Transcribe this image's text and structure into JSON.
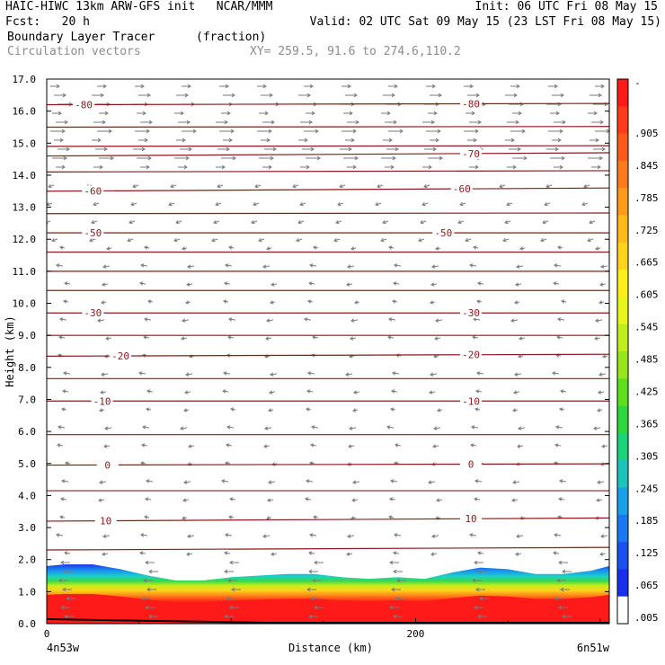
{
  "header": {
    "model": "HAIC-HIWC 13km ARW-GFS init   NCAR/MMM",
    "init": "Init: 06 UTC Fri 08 May 15",
    "fcst": "Fcst:   20 h",
    "valid": "Valid: 02 UTC Sat 09 May 15 (23 LST Fri 08 May 15)",
    "field": "Boundary Layer Tracer",
    "units": "(fraction)",
    "vectors": "Circulation vectors",
    "xy": "XY= 259.5, 91.6 to 274.6,110.2"
  },
  "chart_data": {
    "type": "cross-section",
    "ylabel": "Height (km)",
    "xlabel": "Distance (km)",
    "ylim": [
      0,
      17
    ],
    "xlim": [
      0,
      305
    ],
    "y_ticks": [
      "0.0",
      "1.0",
      "2.0",
      "3.0",
      "4.0",
      "5.0",
      "6.0",
      "7.0",
      "8.0",
      "9.0",
      "10.0",
      "11.0",
      "12.0",
      "13.0",
      "14.0",
      "15.0",
      "16.0",
      "17.0"
    ],
    "x_ticks": [
      {
        "x": 0,
        "label": "0"
      },
      {
        "x": 200,
        "label": "200"
      }
    ],
    "x_end_labels": {
      "left": "4n53w",
      "right": "6n51w"
    },
    "colorbar_labels": [
      "-",
      ".905",
      ".845",
      ".785",
      ".725",
      ".665",
      ".605",
      ".545",
      ".485",
      ".425",
      ".365",
      ".305",
      ".245",
      ".185",
      ".125",
      ".065",
      ".005"
    ],
    "colorbar_colors": [
      "#ff1a1a",
      "#ff3a1a",
      "#ff5a1a",
      "#ff7a1a",
      "#ff9a1a",
      "#ffba1a",
      "#ffd41a",
      "#ffee1a",
      "#e8f51a",
      "#c0ee1a",
      "#96e61a",
      "#5ce01a",
      "#2ed83a",
      "#1ad47a",
      "#1ac4b8",
      "#1aa0e6",
      "#1a78f0",
      "#1a50f0",
      "#1a2ef0",
      "#ffffff"
    ],
    "temperature_contours": [
      {
        "label": "-80",
        "h": 16.2,
        "slope": 0.02,
        "label_x": [
          20,
          230
        ]
      },
      {
        "label": "",
        "h": 15.5,
        "slope": 0.01
      },
      {
        "label": "",
        "h": 14.9,
        "slope": 0.01
      },
      {
        "label": "-70",
        "h": 14.6,
        "slope": 0.05,
        "label_x": [
          230
        ]
      },
      {
        "label": "",
        "h": 14.1,
        "slope": 0.02
      },
      {
        "label": "-60",
        "h": 13.5,
        "slope": 0.05,
        "label_x": [
          25,
          225
        ]
      },
      {
        "label": "",
        "h": 12.8,
        "slope": 0.01
      },
      {
        "label": "-50",
        "h": 12.2,
        "slope": 0.0,
        "label_x": [
          25,
          215
        ]
      },
      {
        "label": "",
        "h": 11.6,
        "slope": 0.0
      },
      {
        "label": "",
        "h": 11.0,
        "slope": 0.0
      },
      {
        "label": "",
        "h": 10.4,
        "slope": 0.0
      },
      {
        "label": "-30",
        "h": 9.7,
        "slope": 0.0,
        "label_x": [
          25,
          230
        ]
      },
      {
        "label": "",
        "h": 9.0,
        "slope": 0.0
      },
      {
        "label": "-20",
        "h": 8.35,
        "slope": 0.03,
        "label_x": [
          40,
          230
        ]
      },
      {
        "label": "",
        "h": 7.65,
        "slope": 0.0
      },
      {
        "label": "-10",
        "h": 6.95,
        "slope": 0.0,
        "label_x": [
          30,
          230
        ]
      },
      {
        "label": "",
        "h": 5.9,
        "slope": 0.0
      },
      {
        "label": "0",
        "h": 4.95,
        "slope": 0.02,
        "label_x": [
          33,
          230
        ]
      },
      {
        "label": "",
        "h": 4.15,
        "slope": 0.0
      },
      {
        "label": "10",
        "h": 3.2,
        "slope": 0.05,
        "label_x": [
          32,
          230
        ]
      },
      {
        "label": "",
        "h": 2.3,
        "slope": 0.04
      }
    ],
    "tracer_top_km": [
      {
        "x": 0,
        "h": 1.8
      },
      {
        "x": 10,
        "h": 1.85
      },
      {
        "x": 25,
        "h": 1.85
      },
      {
        "x": 40,
        "h": 1.7
      },
      {
        "x": 55,
        "h": 1.5
      },
      {
        "x": 70,
        "h": 1.35
      },
      {
        "x": 85,
        "h": 1.35
      },
      {
        "x": 100,
        "h": 1.45
      },
      {
        "x": 115,
        "h": 1.5
      },
      {
        "x": 130,
        "h": 1.55
      },
      {
        "x": 145,
        "h": 1.55
      },
      {
        "x": 160,
        "h": 1.45
      },
      {
        "x": 175,
        "h": 1.4
      },
      {
        "x": 190,
        "h": 1.45
      },
      {
        "x": 205,
        "h": 1.4
      },
      {
        "x": 220,
        "h": 1.6
      },
      {
        "x": 235,
        "h": 1.75
      },
      {
        "x": 250,
        "h": 1.7
      },
      {
        "x": 265,
        "h": 1.55
      },
      {
        "x": 280,
        "h": 1.55
      },
      {
        "x": 295,
        "h": 1.65
      },
      {
        "x": 305,
        "h": 1.8
      }
    ]
  }
}
